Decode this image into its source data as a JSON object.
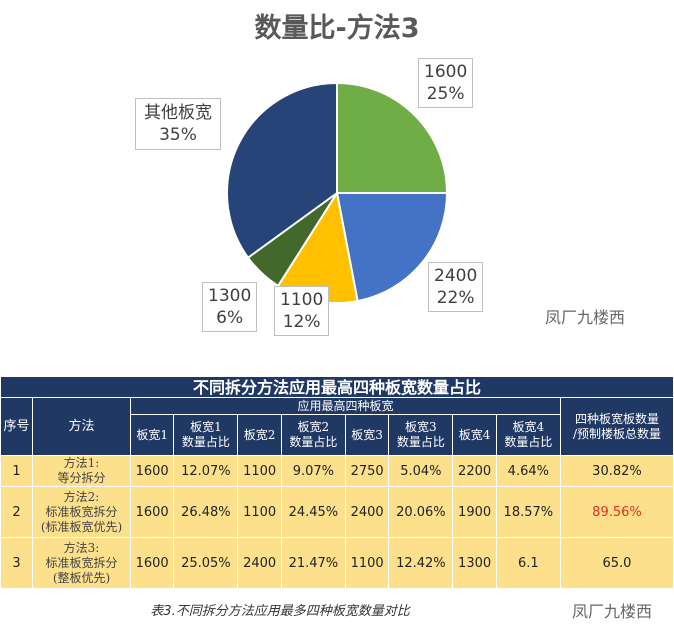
{
  "chart_data": {
    "type": "pie",
    "title": "数量比-方法3",
    "slices": [
      {
        "label": "1600",
        "value": 25,
        "display": "25%",
        "color": "#70ad47"
      },
      {
        "label": "2400",
        "value": 22,
        "display": "22%",
        "color": "#4472c4"
      },
      {
        "label": "1100",
        "value": 12,
        "display": "12%",
        "color": "#ffc000"
      },
      {
        "label": "1300",
        "value": 6,
        "display": "6%",
        "color": "#43682b"
      },
      {
        "label": "其他板宽",
        "value": 35,
        "display": "35%",
        "color": "#264478"
      }
    ]
  },
  "watermark": "凤厂九楼西",
  "table": {
    "title": "不同拆分方法应用最高四种板宽数量占比",
    "h_index": "序号",
    "h_method": "方法",
    "h_group": "应用最高四种板宽",
    "h_cols": [
      "板宽1",
      "板宽1\n数量占比",
      "板宽2",
      "板宽2\n数量占比",
      "板宽3",
      "板宽3\n数量占比",
      "板宽4",
      "板宽4\n数量占比"
    ],
    "h_total": "四种板宽板数量\n/预制楼板总数量",
    "rows": [
      {
        "index": "1",
        "method": "方法1:\n等分拆分",
        "cells": [
          "1600",
          "12.07%",
          "1100",
          "9.07%",
          "2750",
          "5.04%",
          "2200",
          "4.64%"
        ],
        "total": "30.82%"
      },
      {
        "index": "2",
        "method": "方法2:\n标准板宽拆分\n(标准板宽优先)",
        "cells": [
          "1600",
          "26.48%",
          "1100",
          "24.45%",
          "2400",
          "20.06%",
          "1900",
          "18.57%"
        ],
        "total": "89.56%"
      },
      {
        "index": "3",
        "method": "方法3:\n标准板宽拆分\n(整板优先)",
        "cells": [
          "1600",
          "25.05%",
          "2400",
          "21.47%",
          "1100",
          "12.42%",
          "1300",
          "6.1"
        ],
        "total": "65.0"
      }
    ],
    "highlight_color": "#e03020"
  },
  "caption": "表3.不同拆分方法应用最多四种板宽数量对比"
}
